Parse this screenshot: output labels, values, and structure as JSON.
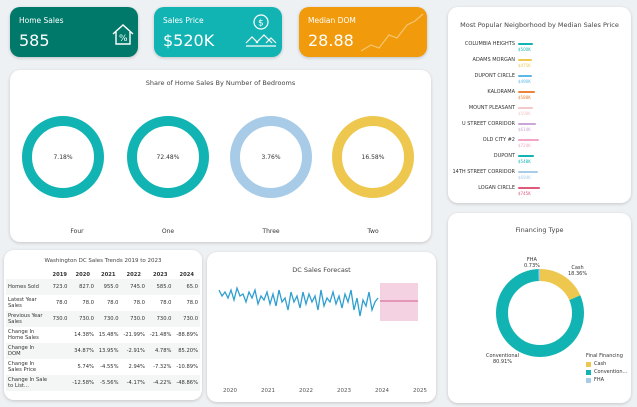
{
  "kpis": {
    "home_sales": {
      "label": "Home Sales",
      "value": "585",
      "icon": "house-percent-icon",
      "color": "#00796b"
    },
    "sales_price": {
      "label": "Sales Price",
      "value": "$520K",
      "icon": "dollar-houses-icon",
      "color": "#11b3b3"
    },
    "median_dom": {
      "label": "Median DOM",
      "value": "28.88",
      "icon": "trend-line-icon",
      "color": "#f09a0c"
    }
  },
  "bedrooms": {
    "title": "Share of Home Sales By Number of Bedrooms",
    "items": [
      {
        "label": "Four",
        "pct": "7.18%",
        "color": "#11b3b3"
      },
      {
        "label": "One",
        "pct": "72.48%",
        "color": "#11b3b3"
      },
      {
        "label": "Three",
        "pct": "3.76%",
        "color": "#a8cbe8"
      },
      {
        "label": "Two",
        "pct": "16.58%",
        "color": "#eec84e"
      }
    ]
  },
  "neighborhood": {
    "title": "Most Popular Neigborhood by Median Sales Price",
    "items": [
      {
        "name": "COLUMBIA HEIGHTS",
        "value": "$500K",
        "bar": 0.62,
        "color": "#11b3b3"
      },
      {
        "name": "ADAMS MORGAN",
        "value": "$475K",
        "bar": 0.58,
        "color": "#eec84e"
      },
      {
        "name": "DUPONT CIRCLE",
        "value": "$490K",
        "bar": 0.6,
        "color": "#5bb8e8"
      },
      {
        "name": "KALORAMA",
        "value": "$588K",
        "bar": 0.72,
        "color": "#e8843c"
      },
      {
        "name": "MOUNT PLEASANT",
        "value": "$508K",
        "bar": 0.62,
        "color": "#f3c9c9"
      },
      {
        "name": "U STREET CORRIDOR",
        "value": "$614K",
        "bar": 0.75,
        "color": "#c9a6d6"
      },
      {
        "name": "OLD CITY #2",
        "value": "$724K",
        "bar": 0.88,
        "color": "#f2a6c4"
      },
      {
        "name": "DUPONT",
        "value": "$548K",
        "bar": 0.67,
        "color": "#11b3b3"
      },
      {
        "name": "14TH STREET CORRIDOR",
        "value": "$694K",
        "bar": 0.85,
        "color": "#a8cbe8"
      },
      {
        "name": "LOGAN CIRCLE",
        "value": "$745K",
        "bar": 0.91,
        "color": "#e0587a"
      }
    ]
  },
  "trends": {
    "title": "Washington DC Sales Trends 2019 to 2023",
    "years": [
      "2019",
      "2020",
      "2021",
      "2022",
      "2023",
      "2024"
    ],
    "rows": [
      {
        "label": "Homes Sold",
        "cells": [
          "723.0",
          "827.0",
          "955.0",
          "745.0",
          "585.0",
          "65.0"
        ]
      },
      {
        "label": "Latest Year Sales",
        "cells": [
          "78.0",
          "78.0",
          "78.0",
          "78.0",
          "78.0",
          "78.0"
        ]
      },
      {
        "label": "Previous Year Sales",
        "cells": [
          "730.0",
          "730.0",
          "730.0",
          "730.0",
          "730.0",
          "730.0"
        ]
      },
      {
        "label": "Change In Home Sales",
        "cells": [
          "",
          "14.38%",
          "15.48%",
          "-21.99%",
          "-21.48%",
          "-88.89%"
        ]
      },
      {
        "label": "Change In DOM",
        "cells": [
          "",
          "34.87%",
          "13.95%",
          "-2.91%",
          "4.78%",
          "85.20%"
        ]
      },
      {
        "label": "Change In Sales Price",
        "cells": [
          "",
          "5.74%",
          "-4.55%",
          "2.94%",
          "-7.32%",
          "-10.89%"
        ]
      },
      {
        "label": "Change In Sale to List...",
        "cells": [
          "",
          "-12.58%",
          "-5.56%",
          "-4.17%",
          "-4.22%",
          "-48.86%"
        ]
      }
    ]
  },
  "forecast": {
    "title": "DC Sales Forecast",
    "x_ticks": [
      "2020",
      "2021",
      "2022",
      "2023",
      "2024",
      "2025"
    ]
  },
  "financing": {
    "title": "Financing Type",
    "legend_title": "Final Financing",
    "slices": [
      {
        "label": "Cash",
        "pct": "18.36%",
        "value": 18.36,
        "color": "#eec84e"
      },
      {
        "label": "Convention...",
        "full_label": "Conventional",
        "pct": "80.91%",
        "value": 80.91,
        "color": "#11b3b3"
      },
      {
        "label": "FHA",
        "pct": "0.73%",
        "value": 0.73,
        "color": "#a8cbe8"
      }
    ]
  }
}
